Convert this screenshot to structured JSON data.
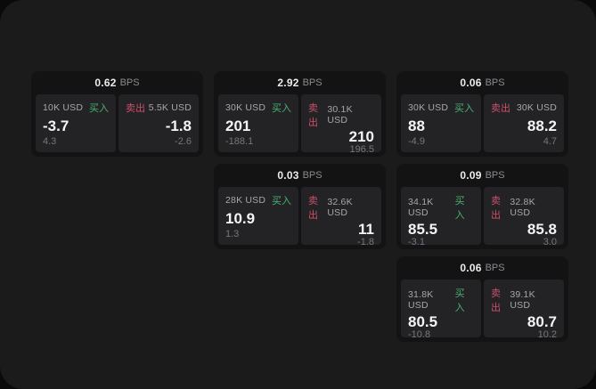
{
  "labels": {
    "bps": "BPS",
    "buy": "买入",
    "sell": "卖出"
  },
  "colors": {
    "page_bg": "#0a0a0a",
    "surface_bg": "#1b1b1c",
    "card_bg": "#131314",
    "panel_bg": "#232325",
    "buy_green": "#4caf72",
    "sell_red": "#cc5066",
    "value_white": "#f4f4f5",
    "muted_grey": "#76777a"
  },
  "cards": [
    {
      "bps": "0.62",
      "buy": {
        "amount": "10K USD",
        "value": "-3.7",
        "delta": "4.3"
      },
      "sell": {
        "amount": "5.5K USD",
        "value": "-1.8",
        "delta": "-2.6"
      }
    },
    {
      "bps": "2.92",
      "buy": {
        "amount": "30K USD",
        "value": "201",
        "delta": "-188.1"
      },
      "sell": {
        "amount": "30.1K USD",
        "value": "210",
        "delta": "196.5"
      }
    },
    {
      "bps": "0.06",
      "buy": {
        "amount": "30K USD",
        "value": "88",
        "delta": "-4.9"
      },
      "sell": {
        "amount": "30K USD",
        "value": "88.2",
        "delta": "4.7"
      }
    },
    {
      "bps": "0.03",
      "buy": {
        "amount": "28K USD",
        "value": "10.9",
        "delta": "1.3"
      },
      "sell": {
        "amount": "32.6K USD",
        "value": "11",
        "delta": "-1.8"
      }
    },
    {
      "bps": "0.09",
      "buy": {
        "amount": "34.1K USD",
        "value": "85.5",
        "delta": "-3.1"
      },
      "sell": {
        "amount": "32.8K USD",
        "value": "85.8",
        "delta": "3.0"
      }
    },
    {
      "bps": "0.06",
      "buy": {
        "amount": "31.8K USD",
        "value": "80.5",
        "delta": "-10.8"
      },
      "sell": {
        "amount": "39.1K USD",
        "value": "80.7",
        "delta": "10.2"
      }
    }
  ]
}
